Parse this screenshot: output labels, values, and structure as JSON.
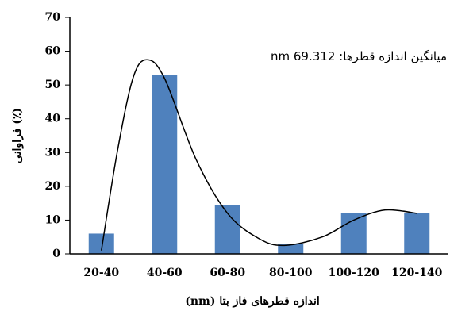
{
  "chart_data": {
    "type": "bar",
    "annotation": "میانگین اندازه قطرها: 69.312 nm",
    "ylabel": "فراوانی (٪)",
    "xlabel": "اندازه قطرهای فاز بتا (nm)",
    "categories": [
      "20-40",
      "40-60",
      "60-80",
      "80-100",
      "100-120",
      "120-140"
    ],
    "values": [
      6,
      53,
      14.5,
      3,
      12,
      12
    ],
    "color": "#4f81bd",
    "ylim": [
      0,
      70
    ],
    "yticks": [
      0,
      10,
      20,
      30,
      40,
      50,
      60,
      70
    ],
    "curve": {
      "x": [
        0,
        0.25,
        0.5,
        0.72,
        1,
        1.5,
        2,
        2.5,
        2.9,
        3.5,
        4,
        4.5,
        5
      ],
      "values": [
        1,
        30,
        52,
        57.5,
        52,
        28,
        12,
        4.5,
        2.5,
        5,
        10,
        13,
        12
      ],
      "color": "#000000"
    }
  }
}
